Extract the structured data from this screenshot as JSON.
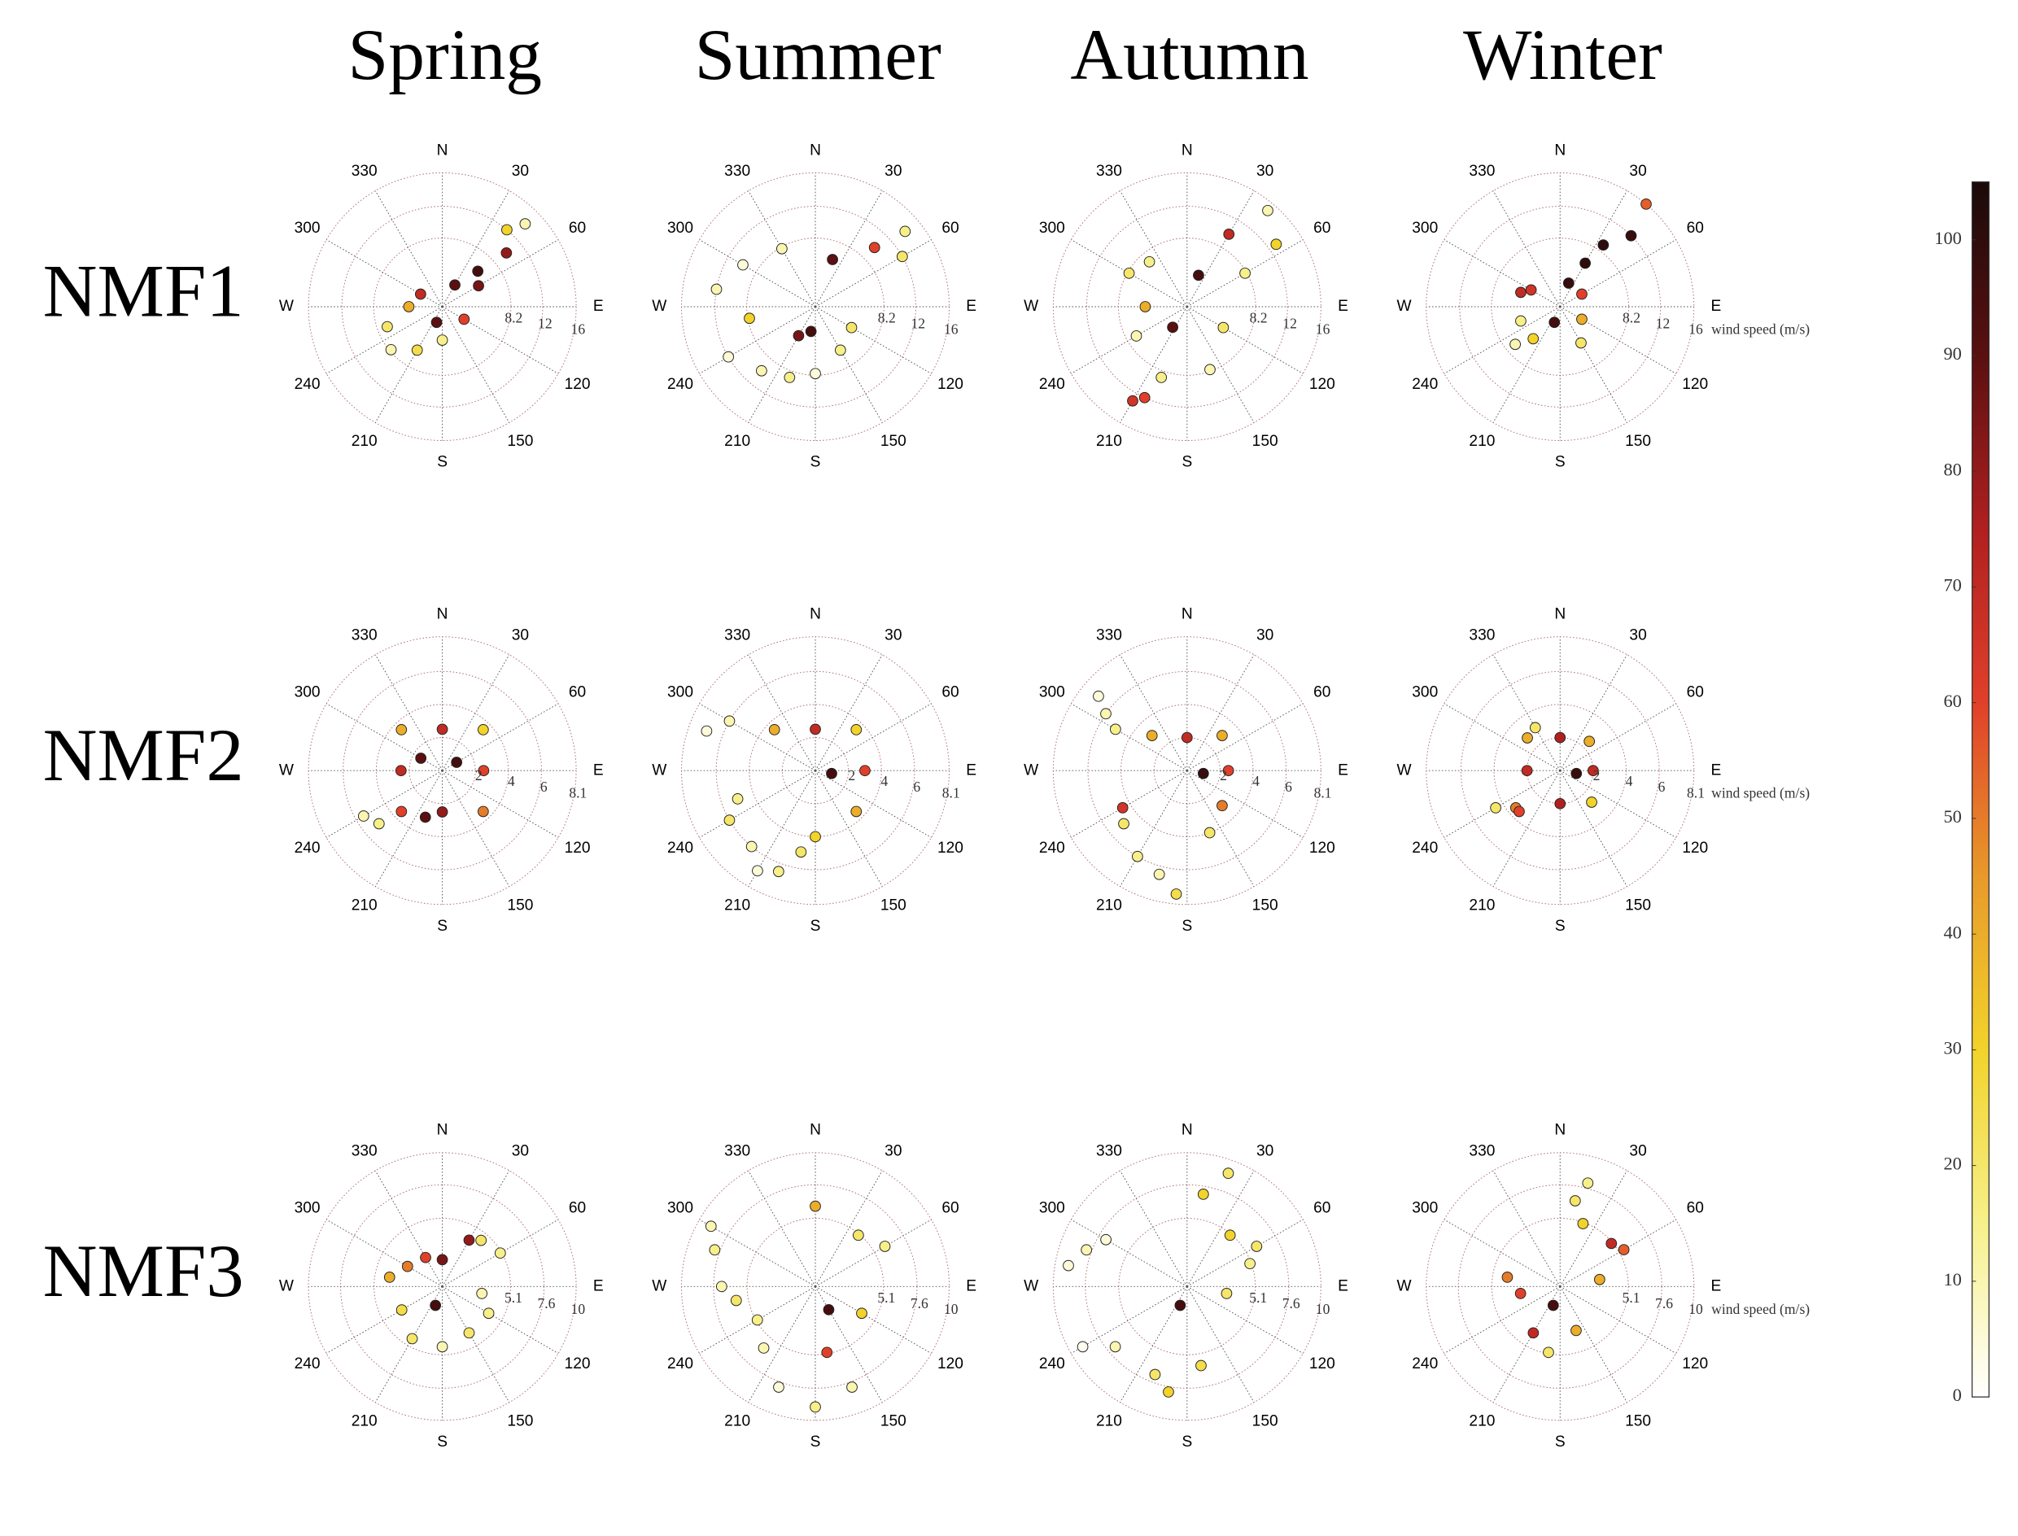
{
  "column_titles": [
    "Spring",
    "Summer",
    "Autumn",
    "Winter"
  ],
  "row_labels": [
    "NMF1",
    "NMF2",
    "NMF3"
  ],
  "colorbar": {
    "lim": [
      0,
      105
    ],
    "ticks": [
      0,
      10,
      20,
      30,
      40,
      50,
      60,
      70,
      80,
      90,
      100
    ],
    "colors": [
      "#ffffff",
      "#f7f08a",
      "#f2d32a",
      "#e89a2a",
      "#e0402a",
      "#b02020",
      "#5a1010",
      "#1a0a0a"
    ]
  },
  "chart_data": [
    {
      "type": "polar_scatter",
      "grid": true,
      "rlim": [
        0,
        16
      ],
      "rticks": [
        8.2,
        12,
        16
      ],
      "angle_ticks": [
        {
          "value": 0,
          "label": "N"
        },
        30,
        60,
        {
          "value": 90,
          "label": "E"
        },
        120,
        150,
        {
          "value": 180,
          "label": "S"
        },
        210,
        240,
        {
          "value": 270,
          "label": "W"
        },
        300,
        330
      ],
      "theta": [
        45,
        40,
        50,
        45,
        30,
        200,
        250,
        230,
        120,
        300,
        60,
        270,
        180,
        210
      ],
      "r": [
        14,
        12,
        10,
        6,
        3,
        2,
        7,
        8,
        3,
        3,
        5,
        4,
        4,
        6
      ],
      "c": [
        10,
        30,
        80,
        95,
        90,
        90,
        20,
        10,
        60,
        70,
        85,
        40,
        15,
        25
      ]
    },
    {
      "type": "polar_scatter",
      "grid": true,
      "rlim": [
        0,
        16
      ],
      "rticks": [
        8.2,
        12,
        16
      ],
      "angle_ticks": [
        {
          "value": 0,
          "label": "N"
        },
        30,
        60,
        {
          "value": 90,
          "label": "E"
        },
        120,
        150,
        {
          "value": 180,
          "label": "S"
        },
        210,
        240,
        {
          "value": 270,
          "label": "W"
        },
        300,
        330
      ],
      "theta": [
        50,
        45,
        60,
        300,
        280,
        240,
        220,
        200,
        180,
        150,
        120,
        330,
        20,
        260,
        210,
        190
      ],
      "r": [
        14,
        10,
        12,
        10,
        12,
        12,
        10,
        9,
        8,
        6,
        5,
        8,
        6,
        8,
        4,
        3
      ],
      "c": [
        15,
        60,
        20,
        5,
        10,
        5,
        10,
        15,
        5,
        15,
        20,
        10,
        90,
        30,
        85,
        95
      ]
    },
    {
      "type": "polar_scatter",
      "grid": true,
      "rlim": [
        0,
        16
      ],
      "rticks": [
        8.2,
        12,
        16
      ],
      "angle_ticks": [
        {
          "value": 0,
          "label": "N"
        },
        30,
        60,
        {
          "value": 90,
          "label": "E"
        },
        120,
        150,
        {
          "value": 180,
          "label": "S"
        },
        210,
        240,
        {
          "value": 270,
          "label": "W"
        },
        300,
        330
      ],
      "theta": [
        40,
        55,
        30,
        300,
        320,
        240,
        200,
        205,
        210,
        160,
        120,
        60,
        20,
        270,
        215
      ],
      "r": [
        15,
        13,
        10,
        8,
        7,
        7,
        9,
        12,
        13,
        8,
        5,
        8,
        4,
        5,
        3
      ],
      "c": [
        10,
        30,
        70,
        20,
        15,
        10,
        15,
        60,
        65,
        10,
        20,
        15,
        95,
        40,
        90
      ]
    },
    {
      "type": "polar_scatter",
      "grid": true,
      "rlim": [
        0,
        16
      ],
      "rticks": [
        8.2,
        12,
        16
      ],
      "r_label": "wind speed (m/s)",
      "angle_ticks": [
        {
          "value": 0,
          "label": "N"
        },
        30,
        60,
        {
          "value": 90,
          "label": "E"
        },
        120,
        150,
        {
          "value": 180,
          "label": "S"
        },
        210,
        240,
        {
          "value": 270,
          "label": "W"
        },
        300,
        330
      ],
      "theta": [
        40,
        45,
        35,
        30,
        300,
        290,
        250,
        230,
        220,
        150,
        120,
        60,
        20,
        200
      ],
      "r": [
        16,
        12,
        9,
        6,
        4,
        5,
        5,
        7,
        5,
        5,
        3,
        3,
        3,
        2
      ],
      "c": [
        55,
        98,
        100,
        100,
        65,
        70,
        15,
        10,
        30,
        20,
        40,
        60,
        98,
        95
      ]
    },
    {
      "type": "polar_scatter",
      "grid": true,
      "rlim": [
        0,
        8.1
      ],
      "rticks": [
        2,
        4,
        6,
        8.1
      ],
      "angle_ticks": [
        {
          "value": 0,
          "label": "N"
        },
        30,
        60,
        {
          "value": 90,
          "label": "E"
        },
        120,
        150,
        {
          "value": 180,
          "label": "S"
        },
        210,
        240,
        {
          "value": 270,
          "label": "W"
        },
        300,
        330
      ],
      "theta": [
        45,
        135,
        225,
        315,
        0,
        90,
        180,
        270,
        230,
        240,
        200,
        60,
        300
      ],
      "r": [
        3.5,
        3.5,
        3.5,
        3.5,
        2.5,
        2.5,
        2.5,
        2.5,
        5,
        5.5,
        3,
        1,
        1.5
      ],
      "c": [
        30,
        50,
        60,
        40,
        70,
        60,
        80,
        70,
        15,
        10,
        90,
        95,
        90
      ]
    },
    {
      "type": "polar_scatter",
      "grid": true,
      "rlim": [
        0,
        8.1
      ],
      "rticks": [
        2,
        4,
        6,
        8.1
      ],
      "angle_ticks": [
        {
          "value": 0,
          "label": "N"
        },
        30,
        60,
        {
          "value": 90,
          "label": "E"
        },
        120,
        150,
        {
          "value": 180,
          "label": "S"
        },
        210,
        240,
        {
          "value": 270,
          "label": "W"
        },
        300,
        330
      ],
      "theta": [
        300,
        290,
        250,
        240,
        220,
        210,
        200,
        190,
        180,
        45,
        135,
        315,
        0,
        90,
        100
      ],
      "r": [
        6,
        7,
        5,
        6,
        6,
        7,
        6.5,
        5,
        4,
        3.5,
        3.5,
        3.5,
        2.5,
        3,
        1
      ],
      "c": [
        10,
        5,
        15,
        20,
        10,
        5,
        15,
        20,
        30,
        30,
        40,
        40,
        70,
        60,
        95
      ]
    },
    {
      "type": "polar_scatter",
      "grid": true,
      "rlim": [
        0,
        8.1
      ],
      "rticks": [
        2,
        4,
        6,
        8.1
      ],
      "angle_ticks": [
        {
          "value": 0,
          "label": "N"
        },
        30,
        60,
        {
          "value": 90,
          "label": "E"
        },
        120,
        150,
        {
          "value": 180,
          "label": "S"
        },
        210,
        240,
        {
          "value": 270,
          "label": "W"
        },
        300,
        330
      ],
      "theta": [
        310,
        305,
        300,
        240,
        230,
        210,
        195,
        185,
        160,
        45,
        135,
        315,
        0,
        90,
        100
      ],
      "r": [
        7,
        6,
        5,
        4.5,
        5,
        6,
        6.5,
        7.5,
        4,
        3,
        3,
        3,
        2,
        2.5,
        1
      ],
      "c": [
        5,
        10,
        15,
        65,
        20,
        15,
        10,
        25,
        20,
        40,
        50,
        40,
        70,
        60,
        98
      ]
    },
    {
      "type": "polar_scatter",
      "grid": true,
      "rlim": [
        0,
        8.1
      ],
      "rticks": [
        2,
        4,
        6,
        8.1
      ],
      "r_label": "wind speed (m/s)",
      "angle_ticks": [
        {
          "value": 0,
          "label": "N"
        },
        30,
        60,
        {
          "value": 90,
          "label": "E"
        },
        120,
        150,
        {
          "value": 180,
          "label": "S"
        },
        210,
        240,
        {
          "value": 270,
          "label": "W"
        },
        300,
        330
      ],
      "theta": [
        330,
        240,
        230,
        225,
        135,
        45,
        315,
        0,
        90,
        180,
        270,
        100
      ],
      "r": [
        3,
        4.5,
        3.5,
        3.5,
        2.7,
        2.5,
        2.8,
        2,
        2,
        2,
        2,
        1
      ],
      "c": [
        20,
        20,
        50,
        60,
        30,
        40,
        40,
        75,
        70,
        75,
        70,
        98
      ]
    },
    {
      "type": "polar_scatter",
      "grid": true,
      "rlim": [
        0,
        10
      ],
      "rticks": [
        5.1,
        7.6,
        10
      ],
      "angle_ticks": [
        {
          "value": 0,
          "label": "N"
        },
        30,
        60,
        {
          "value": 90,
          "label": "E"
        },
        120,
        150,
        {
          "value": 180,
          "label": "S"
        },
        210,
        240,
        {
          "value": 270,
          "label": "W"
        },
        300,
        330
      ],
      "theta": [
        30,
        40,
        60,
        100,
        120,
        150,
        180,
        210,
        240,
        280,
        300,
        330,
        0,
        200
      ],
      "r": [
        4,
        4.5,
        5,
        3,
        4,
        4,
        4.5,
        4.5,
        3.5,
        4,
        3,
        2.5,
        2,
        1.5
      ],
      "c": [
        80,
        20,
        15,
        10,
        15,
        20,
        10,
        20,
        25,
        40,
        50,
        60,
        85,
        95
      ]
    },
    {
      "type": "polar_scatter",
      "grid": true,
      "rlim": [
        0,
        10
      ],
      "rticks": [
        5.1,
        7.6,
        10
      ],
      "angle_ticks": [
        {
          "value": 0,
          "label": "N"
        },
        30,
        60,
        {
          "value": 90,
          "label": "E"
        },
        120,
        150,
        {
          "value": 180,
          "label": "S"
        },
        210,
        240,
        {
          "value": 270,
          "label": "W"
        },
        300,
        330
      ],
      "theta": [
        300,
        290,
        270,
        260,
        240,
        220,
        200,
        180,
        160,
        170,
        120,
        40,
        60,
        0,
        150
      ],
      "r": [
        9,
        8,
        7,
        6,
        5,
        6,
        8,
        9,
        8,
        5,
        4,
        5,
        6,
        6,
        2
      ],
      "c": [
        10,
        15,
        10,
        20,
        15,
        10,
        5,
        15,
        10,
        60,
        30,
        20,
        15,
        40,
        95
      ]
    },
    {
      "type": "polar_scatter",
      "grid": true,
      "rlim": [
        0,
        10
      ],
      "rticks": [
        5.1,
        7.6,
        10
      ],
      "angle_ticks": [
        {
          "value": 0,
          "label": "N"
        },
        30,
        60,
        {
          "value": 90,
          "label": "E"
        },
        120,
        150,
        {
          "value": 180,
          "label": "S"
        },
        210,
        240,
        {
          "value": 270,
          "label": "W"
        },
        300,
        330
      ],
      "theta": [
        20,
        10,
        300,
        290,
        280,
        240,
        230,
        200,
        190,
        170,
        60,
        40,
        70,
        100,
        200
      ],
      "r": [
        9,
        7,
        7,
        8,
        9,
        9,
        7,
        7,
        8,
        6,
        6,
        5,
        5,
        3,
        1.5
      ],
      "c": [
        20,
        30,
        5,
        10,
        5,
        2,
        10,
        20,
        30,
        25,
        20,
        30,
        15,
        20,
        95
      ]
    },
    {
      "type": "polar_scatter",
      "grid": true,
      "rlim": [
        0,
        10
      ],
      "rticks": [
        5.1,
        7.6,
        10
      ],
      "r_label": "wind speed (m/s)",
      "angle_ticks": [
        {
          "value": 0,
          "label": "N"
        },
        30,
        60,
        {
          "value": 90,
          "label": "E"
        },
        120,
        150,
        {
          "value": 180,
          "label": "S"
        },
        210,
        240,
        {
          "value": 270,
          "label": "W"
        },
        300,
        330
      ],
      "theta": [
        15,
        10,
        20,
        50,
        60,
        80,
        280,
        260,
        210,
        190,
        160,
        200
      ],
      "r": [
        8,
        6.5,
        5,
        5,
        5.5,
        3,
        4,
        3,
        4,
        5,
        3.5,
        1.5
      ],
      "c": [
        15,
        20,
        30,
        70,
        55,
        40,
        50,
        60,
        70,
        20,
        40,
        95
      ]
    }
  ]
}
